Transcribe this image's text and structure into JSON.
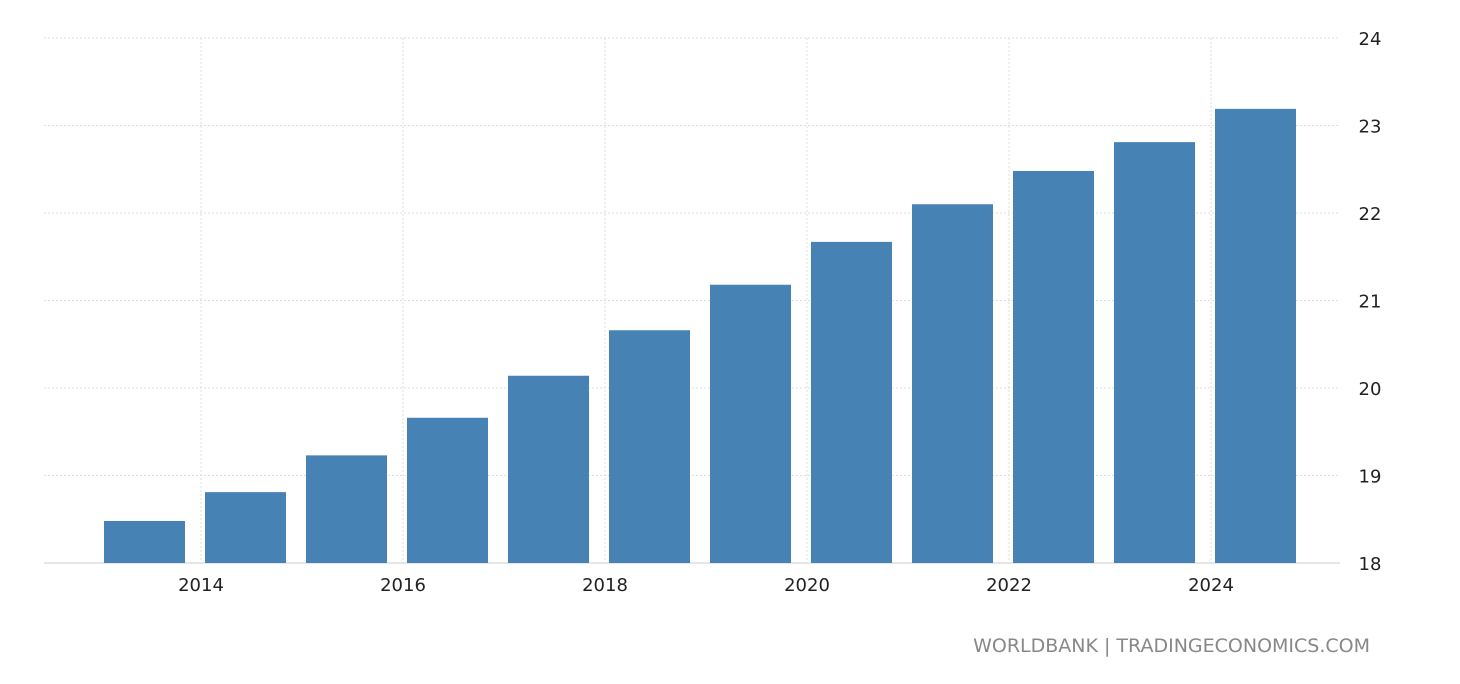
{
  "chart_data": {
    "type": "bar",
    "title": "",
    "xlabel": "",
    "ylabel": "",
    "categories": [
      "2013",
      "2014",
      "2015",
      "2016",
      "2017",
      "2018",
      "2019",
      "2020",
      "2021",
      "2022",
      "2023",
      "2024"
    ],
    "values": [
      18.48,
      18.81,
      19.23,
      19.66,
      20.14,
      20.66,
      21.18,
      21.67,
      22.1,
      22.48,
      22.81,
      23.19
    ],
    "ylim": [
      18,
      24
    ],
    "y_ticks": [
      "18",
      "19",
      "20",
      "21",
      "22",
      "23",
      "24"
    ],
    "x_ticks": [
      "2014",
      "2016",
      "2018",
      "2020",
      "2022",
      "2024"
    ],
    "y_axis_side": "right",
    "grid": true,
    "bar_color": "#4682b4",
    "source": "WORLDBANK | TRADINGECONOMICS.COM"
  }
}
